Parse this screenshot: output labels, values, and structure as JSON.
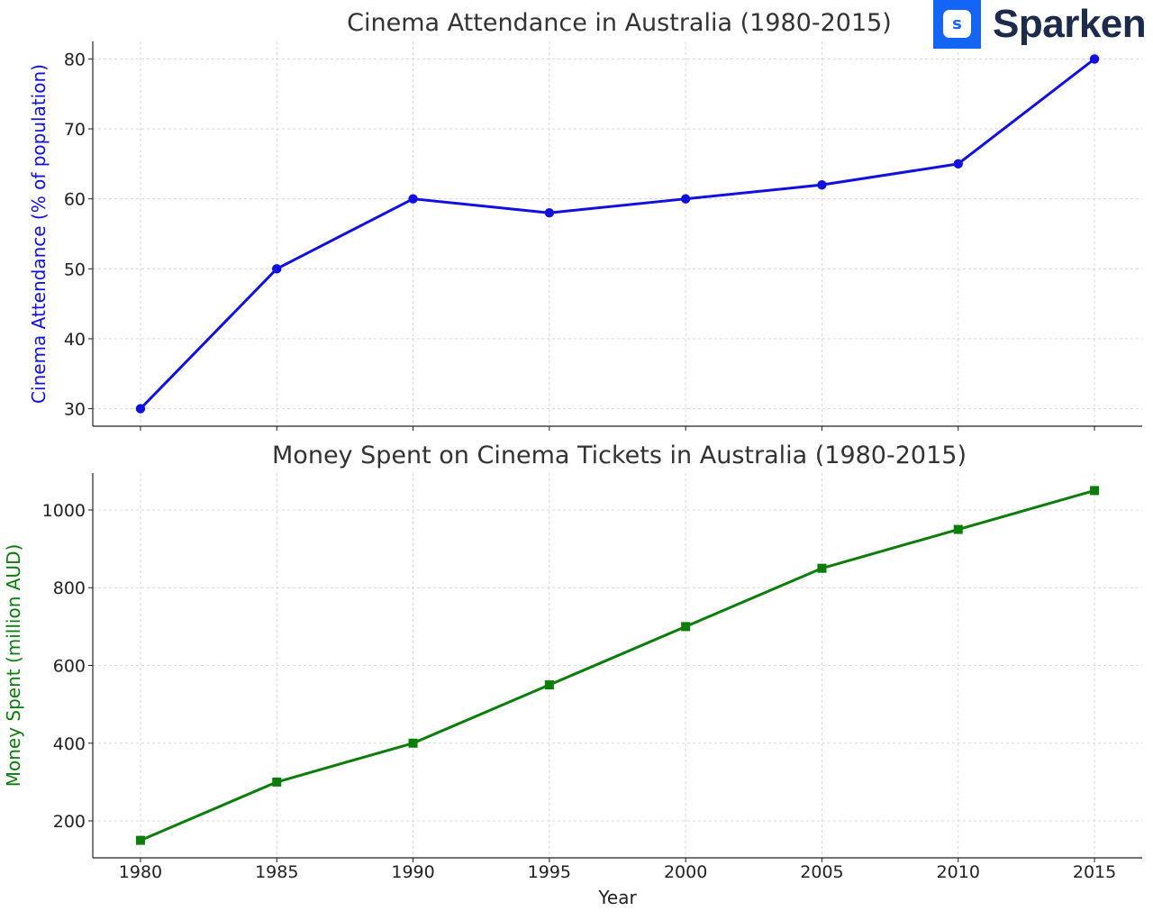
{
  "brand": {
    "badge_letter": "s",
    "name": "Sparken",
    "colors": {
      "badge": "#1565f5",
      "text": "#1c2b4b"
    }
  },
  "chart_data": [
    {
      "type": "line",
      "title": "Cinema Attendance in Australia (1980-2015)",
      "xlabel": "",
      "ylabel": "Cinema Attendance (% of population)",
      "x": [
        1980,
        1985,
        1990,
        1995,
        2000,
        2005,
        2010,
        2015
      ],
      "series": [
        {
          "name": "Cinema Attendance (% of population)",
          "values": [
            30,
            50,
            60,
            58,
            60,
            62,
            65,
            80
          ],
          "color": "#1010e0",
          "marker": "circle"
        }
      ],
      "ylim": [
        27.5,
        82.5
      ],
      "yticks": [
        30,
        40,
        50,
        60,
        70,
        80
      ],
      "grid": true
    },
    {
      "type": "line",
      "title": "Money Spent on Cinema Tickets in Australia (1980-2015)",
      "xlabel": "Year",
      "ylabel": "Money Spent (million AUD)",
      "x": [
        1980,
        1985,
        1990,
        1995,
        2000,
        2005,
        2010,
        2015
      ],
      "series": [
        {
          "name": "Money Spent (million AUD)",
          "values": [
            150,
            300,
            400,
            550,
            700,
            850,
            950,
            1050
          ],
          "color": "#0a7d0a",
          "marker": "square"
        }
      ],
      "ylim": [
        105,
        1095
      ],
      "yticks": [
        200,
        400,
        600,
        800,
        1000
      ],
      "grid": true
    }
  ]
}
